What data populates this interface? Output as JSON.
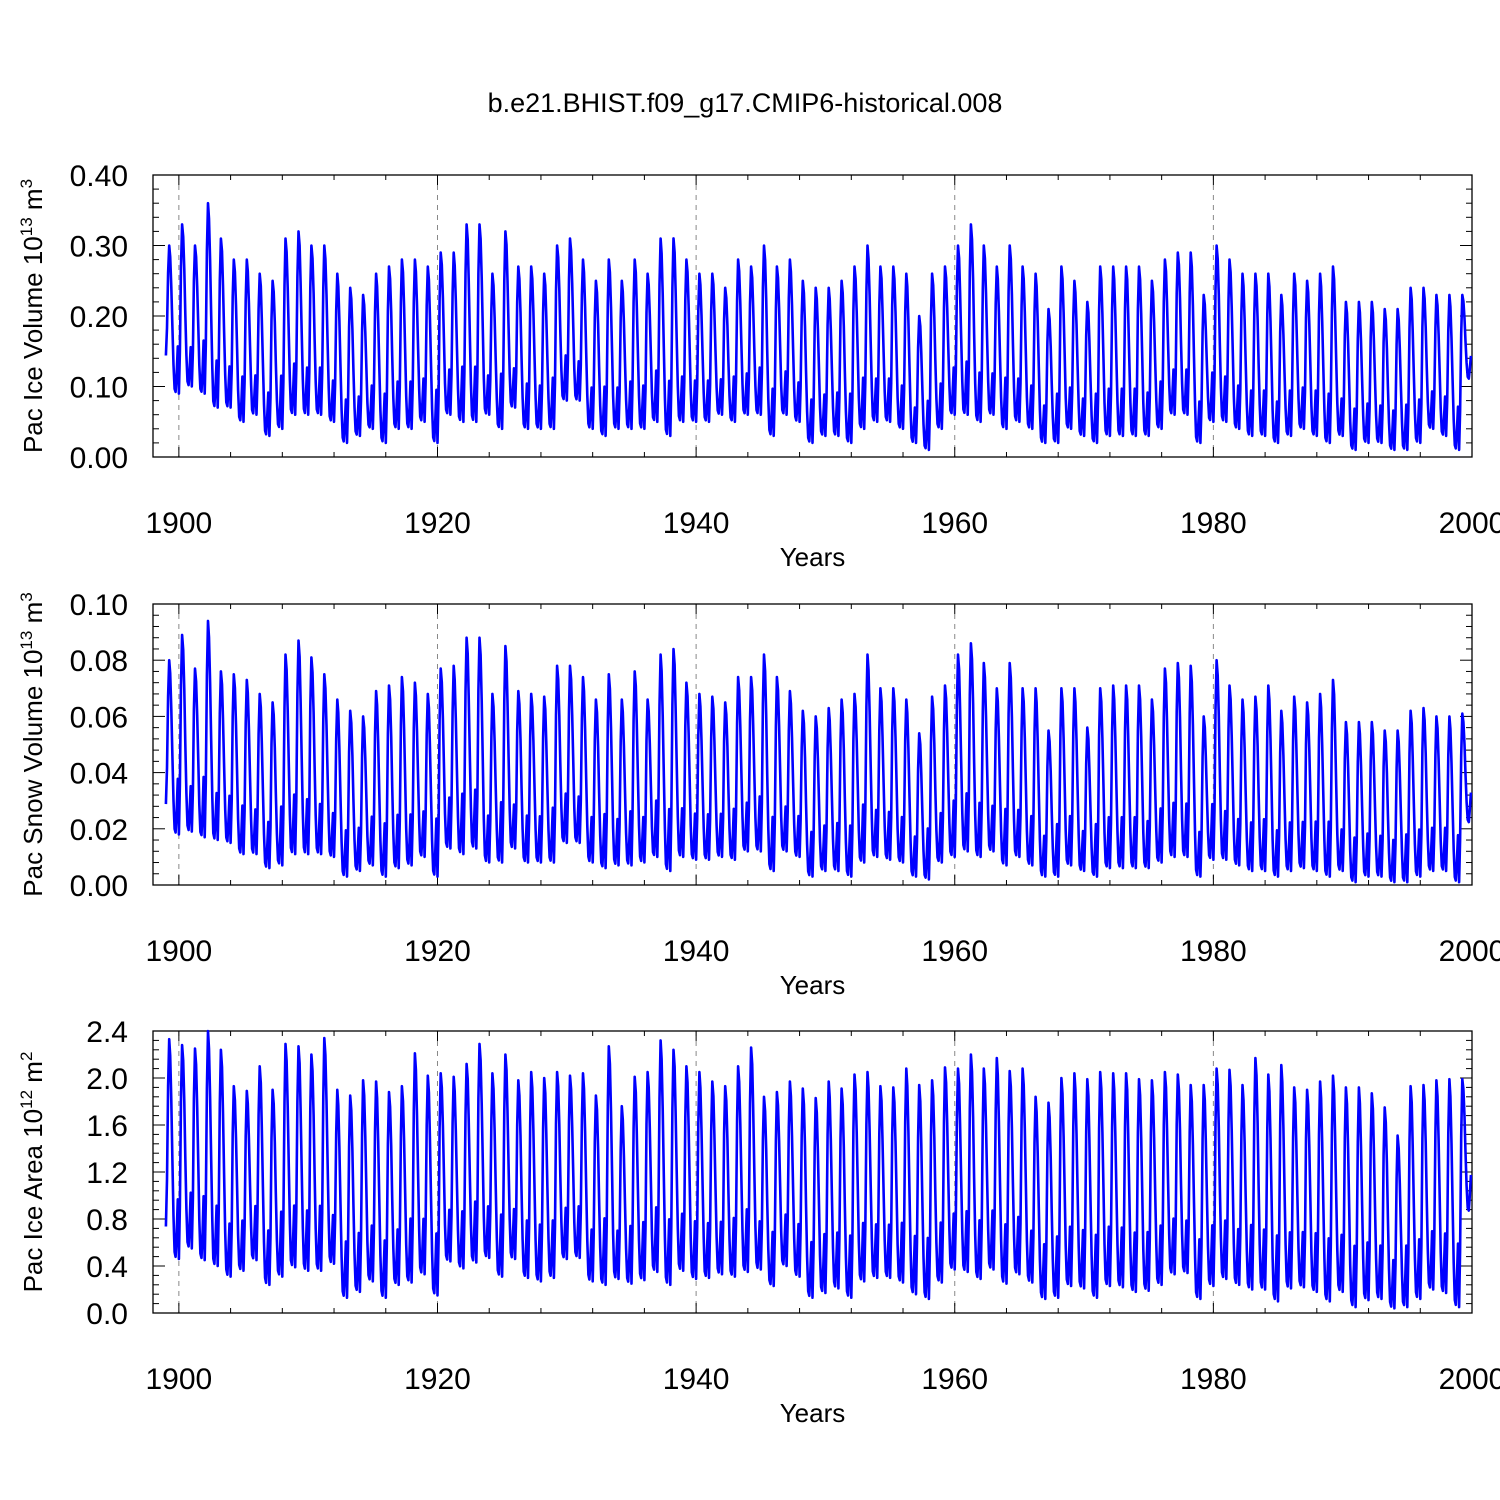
{
  "title": "b.e21.BHIST.f09_g17.CMIP6-historical.008",
  "line_color": "#0000ff",
  "chart_data": [
    {
      "type": "line",
      "id": "ice-volume",
      "ylabel": "Pac Ice Volume 10",
      "ylabel_sup": "13",
      "ylabel_unit": " m",
      "ylabel_unit_sup": "3",
      "xlabel": "Years",
      "xlim": [
        1898,
        2000
      ],
      "ylim": [
        0.0,
        0.4
      ],
      "yticks": [
        "0.00",
        "0.10",
        "0.20",
        "0.30",
        "0.40"
      ],
      "ytick_values": [
        0.0,
        0.1,
        0.2,
        0.3,
        0.4
      ],
      "xticks": [
        "1900",
        "1920",
        "1940",
        "1960",
        "1980",
        "2000"
      ],
      "xtick_values": [
        1900,
        1920,
        1940,
        1960,
        1980,
        2000
      ],
      "series": [
        {
          "name": "Pac Ice Volume",
          "start_year": 1899,
          "annual_max": [
            0.3,
            0.33,
            0.3,
            0.36,
            0.31,
            0.28,
            0.28,
            0.26,
            0.25,
            0.31,
            0.32,
            0.3,
            0.3,
            0.26,
            0.24,
            0.23,
            0.26,
            0.27,
            0.28,
            0.28,
            0.27,
            0.29,
            0.29,
            0.33,
            0.33,
            0.26,
            0.32,
            0.27,
            0.27,
            0.26,
            0.3,
            0.31,
            0.28,
            0.25,
            0.28,
            0.25,
            0.28,
            0.26,
            0.31,
            0.31,
            0.28,
            0.26,
            0.26,
            0.24,
            0.28,
            0.27,
            0.3,
            0.27,
            0.28,
            0.25,
            0.24,
            0.24,
            0.25,
            0.27,
            0.3,
            0.27,
            0.27,
            0.26,
            0.2,
            0.26,
            0.27,
            0.3,
            0.33,
            0.3,
            0.27,
            0.3,
            0.27,
            0.26,
            0.21,
            0.27,
            0.25,
            0.22,
            0.27,
            0.27,
            0.27,
            0.27,
            0.25,
            0.28,
            0.29,
            0.29,
            0.23,
            0.3,
            0.28,
            0.26,
            0.26,
            0.26,
            0.23,
            0.26,
            0.25,
            0.26,
            0.27,
            0.22,
            0.22,
            0.22,
            0.21,
            0.21,
            0.24,
            0.24,
            0.23,
            0.23,
            0.23
          ],
          "annual_min": [
            0.09,
            0.1,
            0.09,
            0.07,
            0.07,
            0.05,
            0.06,
            0.03,
            0.04,
            0.06,
            0.06,
            0.06,
            0.05,
            0.02,
            0.03,
            0.04,
            0.02,
            0.04,
            0.04,
            0.05,
            0.02,
            0.06,
            0.05,
            0.05,
            0.06,
            0.04,
            0.07,
            0.04,
            0.04,
            0.04,
            0.08,
            0.08,
            0.04,
            0.03,
            0.04,
            0.04,
            0.04,
            0.05,
            0.03,
            0.05,
            0.05,
            0.05,
            0.06,
            0.05,
            0.06,
            0.06,
            0.03,
            0.06,
            0.05,
            0.02,
            0.03,
            0.03,
            0.02,
            0.04,
            0.05,
            0.05,
            0.04,
            0.02,
            0.01,
            0.04,
            0.06,
            0.06,
            0.05,
            0.06,
            0.04,
            0.05,
            0.04,
            0.02,
            0.02,
            0.04,
            0.03,
            0.02,
            0.03,
            0.03,
            0.03,
            0.03,
            0.04,
            0.06,
            0.06,
            0.02,
            0.05,
            0.05,
            0.04,
            0.03,
            0.03,
            0.02,
            0.03,
            0.04,
            0.03,
            0.02,
            0.03,
            0.01,
            0.02,
            0.02,
            0.01,
            0.01,
            0.02,
            0.04,
            0.03,
            0.01,
            0.11
          ]
        }
      ]
    },
    {
      "type": "line",
      "id": "snow-volume",
      "ylabel": "Pac Snow Volume 10",
      "ylabel_sup": "13",
      "ylabel_unit": " m",
      "ylabel_unit_sup": "3",
      "xlabel": "Years",
      "xlim": [
        1898,
        2000
      ],
      "ylim": [
        0.0,
        0.1
      ],
      "yticks": [
        "0.00",
        "0.02",
        "0.04",
        "0.06",
        "0.08",
        "0.10"
      ],
      "ytick_values": [
        0.0,
        0.02,
        0.04,
        0.06,
        0.08,
        0.1
      ],
      "xticks": [
        "1900",
        "1920",
        "1940",
        "1960",
        "1980",
        "2000"
      ],
      "xtick_values": [
        1900,
        1920,
        1940,
        1960,
        1980,
        2000
      ],
      "series": [
        {
          "name": "Pac Snow Volume",
          "start_year": 1899,
          "annual_max": [
            0.08,
            0.089,
            0.077,
            0.094,
            0.076,
            0.075,
            0.073,
            0.068,
            0.065,
            0.082,
            0.087,
            0.081,
            0.075,
            0.066,
            0.062,
            0.06,
            0.069,
            0.071,
            0.074,
            0.072,
            0.068,
            0.077,
            0.078,
            0.088,
            0.088,
            0.068,
            0.085,
            0.069,
            0.068,
            0.067,
            0.078,
            0.078,
            0.074,
            0.066,
            0.075,
            0.066,
            0.076,
            0.066,
            0.082,
            0.084,
            0.072,
            0.068,
            0.067,
            0.065,
            0.074,
            0.074,
            0.082,
            0.074,
            0.069,
            0.062,
            0.06,
            0.063,
            0.066,
            0.068,
            0.082,
            0.07,
            0.07,
            0.066,
            0.054,
            0.067,
            0.071,
            0.082,
            0.086,
            0.079,
            0.07,
            0.079,
            0.07,
            0.07,
            0.055,
            0.07,
            0.07,
            0.056,
            0.07,
            0.071,
            0.071,
            0.071,
            0.066,
            0.077,
            0.079,
            0.078,
            0.06,
            0.08,
            0.071,
            0.066,
            0.067,
            0.071,
            0.062,
            0.067,
            0.065,
            0.068,
            0.073,
            0.058,
            0.058,
            0.058,
            0.055,
            0.055,
            0.062,
            0.063,
            0.06,
            0.06,
            0.061
          ],
          "annual_min": [
            0.018,
            0.019,
            0.017,
            0.016,
            0.015,
            0.011,
            0.011,
            0.006,
            0.007,
            0.011,
            0.011,
            0.011,
            0.01,
            0.003,
            0.005,
            0.007,
            0.003,
            0.006,
            0.007,
            0.01,
            0.003,
            0.013,
            0.011,
            0.013,
            0.008,
            0.008,
            0.013,
            0.008,
            0.008,
            0.008,
            0.015,
            0.015,
            0.008,
            0.006,
            0.007,
            0.007,
            0.008,
            0.01,
            0.005,
            0.01,
            0.009,
            0.009,
            0.01,
            0.009,
            0.012,
            0.012,
            0.005,
            0.012,
            0.01,
            0.003,
            0.005,
            0.005,
            0.003,
            0.008,
            0.01,
            0.009,
            0.008,
            0.003,
            0.002,
            0.008,
            0.01,
            0.012,
            0.01,
            0.012,
            0.007,
            0.01,
            0.007,
            0.003,
            0.003,
            0.007,
            0.005,
            0.003,
            0.006,
            0.006,
            0.006,
            0.006,
            0.008,
            0.01,
            0.01,
            0.003,
            0.009,
            0.009,
            0.007,
            0.005,
            0.005,
            0.003,
            0.005,
            0.006,
            0.005,
            0.003,
            0.005,
            0.001,
            0.003,
            0.003,
            0.001,
            0.001,
            0.003,
            0.005,
            0.005,
            0.001,
            0.022
          ]
        }
      ]
    },
    {
      "type": "line",
      "id": "ice-area",
      "ylabel": "Pac Ice Area 10",
      "ylabel_sup": "12",
      "ylabel_unit": " m",
      "ylabel_unit_sup": "2",
      "xlabel": "Years",
      "xlim": [
        1898,
        2000
      ],
      "ylim": [
        0.0,
        2.4
      ],
      "yticks": [
        "0.0",
        "0.4",
        "0.8",
        "1.2",
        "1.6",
        "2.0",
        "2.4"
      ],
      "ytick_values": [
        0.0,
        0.4,
        0.8,
        1.2,
        1.6,
        2.0,
        2.4
      ],
      "xticks": [
        "1900",
        "1920",
        "1940",
        "1960",
        "1980",
        "2000"
      ],
      "xtick_values": [
        1900,
        1920,
        1940,
        1960,
        1980,
        2000
      ],
      "series": [
        {
          "name": "Pac Ice Area",
          "start_year": 1899,
          "annual_max": [
            2.33,
            2.28,
            2.25,
            2.4,
            2.24,
            1.93,
            1.89,
            2.1,
            1.9,
            2.29,
            2.27,
            2.2,
            2.34,
            1.9,
            1.85,
            1.98,
            1.97,
            1.88,
            1.93,
            2.21,
            2.02,
            2.04,
            2.01,
            2.12,
            2.29,
            2.04,
            2.2,
            1.98,
            2.05,
            2.0,
            2.05,
            2.02,
            2.04,
            1.85,
            2.27,
            1.76,
            2.01,
            2.05,
            2.32,
            2.24,
            2.1,
            2.05,
            1.97,
            1.93,
            2.1,
            2.26,
            1.84,
            1.88,
            1.97,
            1.91,
            1.83,
            1.97,
            1.91,
            2.03,
            2.05,
            1.93,
            1.92,
            2.08,
            1.94,
            1.98,
            2.09,
            2.08,
            2.2,
            2.08,
            2.17,
            2.06,
            2.08,
            1.84,
            1.79,
            2.0,
            2.04,
            1.99,
            2.05,
            2.04,
            2.04,
            1.99,
            1.98,
            2.05,
            2.03,
            1.94,
            1.94,
            2.08,
            2.07,
            1.94,
            2.17,
            2.03,
            2.11,
            1.92,
            1.9,
            1.97,
            2.02,
            1.92,
            1.92,
            1.87,
            1.75,
            1.51,
            1.93,
            1.94,
            1.98,
            1.99,
            1.99
          ],
          "annual_min": [
            0.46,
            0.55,
            0.45,
            0.4,
            0.31,
            0.36,
            0.45,
            0.24,
            0.31,
            0.39,
            0.36,
            0.36,
            0.42,
            0.13,
            0.18,
            0.27,
            0.13,
            0.24,
            0.26,
            0.33,
            0.15,
            0.44,
            0.38,
            0.43,
            0.47,
            0.31,
            0.46,
            0.3,
            0.27,
            0.3,
            0.46,
            0.47,
            0.27,
            0.24,
            0.29,
            0.25,
            0.28,
            0.35,
            0.24,
            0.36,
            0.29,
            0.3,
            0.33,
            0.31,
            0.35,
            0.37,
            0.23,
            0.4,
            0.31,
            0.13,
            0.17,
            0.21,
            0.13,
            0.27,
            0.3,
            0.3,
            0.26,
            0.16,
            0.12,
            0.26,
            0.37,
            0.35,
            0.29,
            0.37,
            0.25,
            0.33,
            0.26,
            0.12,
            0.13,
            0.23,
            0.21,
            0.13,
            0.23,
            0.22,
            0.18,
            0.19,
            0.24,
            0.33,
            0.34,
            0.12,
            0.23,
            0.29,
            0.24,
            0.2,
            0.2,
            0.1,
            0.21,
            0.22,
            0.18,
            0.1,
            0.18,
            0.05,
            0.11,
            0.12,
            0.04,
            0.05,
            0.12,
            0.2,
            0.17,
            0.05,
            0.86
          ]
        }
      ]
    }
  ]
}
